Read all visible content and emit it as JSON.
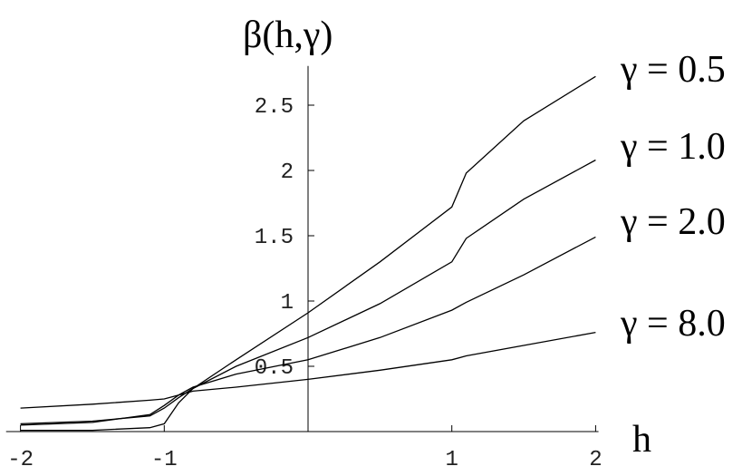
{
  "chart_data": {
    "type": "line",
    "y_label": "β(h,γ)",
    "x_label": "h",
    "x": [
      -2,
      -1.5,
      -1.1,
      -1,
      -0.9,
      -0.8,
      -0.5,
      0,
      0.5,
      1,
      1.1,
      1.5,
      2
    ],
    "series": [
      {
        "name": "γ = 0.5",
        "color": "#000000",
        "values": [
          0.01,
          0.01,
          0.03,
          0.06,
          0.22,
          0.33,
          0.55,
          0.91,
          1.3,
          1.72,
          1.98,
          2.38,
          2.72
        ]
      },
      {
        "name": "γ = 1.0",
        "color": "#000000",
        "values": [
          0.06,
          0.08,
          0.12,
          0.18,
          0.26,
          0.33,
          0.5,
          0.72,
          0.98,
          1.3,
          1.48,
          1.78,
          2.08
        ]
      },
      {
        "name": "γ = 2.0",
        "color": "#000000",
        "values": [
          0.05,
          0.07,
          0.13,
          0.2,
          0.28,
          0.34,
          0.44,
          0.55,
          0.72,
          0.93,
          0.99,
          1.2,
          1.49
        ]
      },
      {
        "name": "γ = 8.0",
        "color": "#000000",
        "values": [
          0.18,
          0.21,
          0.24,
          0.25,
          0.28,
          0.31,
          0.34,
          0.4,
          0.47,
          0.55,
          0.58,
          0.66,
          0.76
        ]
      }
    ],
    "xlim": [
      -2.1,
      2.02
    ],
    "ylim": [
      0,
      2.8
    ],
    "xticks": [
      -2,
      -1,
      1,
      2
    ],
    "yticks": [
      0.5,
      1,
      1.5,
      2,
      2.5
    ]
  }
}
